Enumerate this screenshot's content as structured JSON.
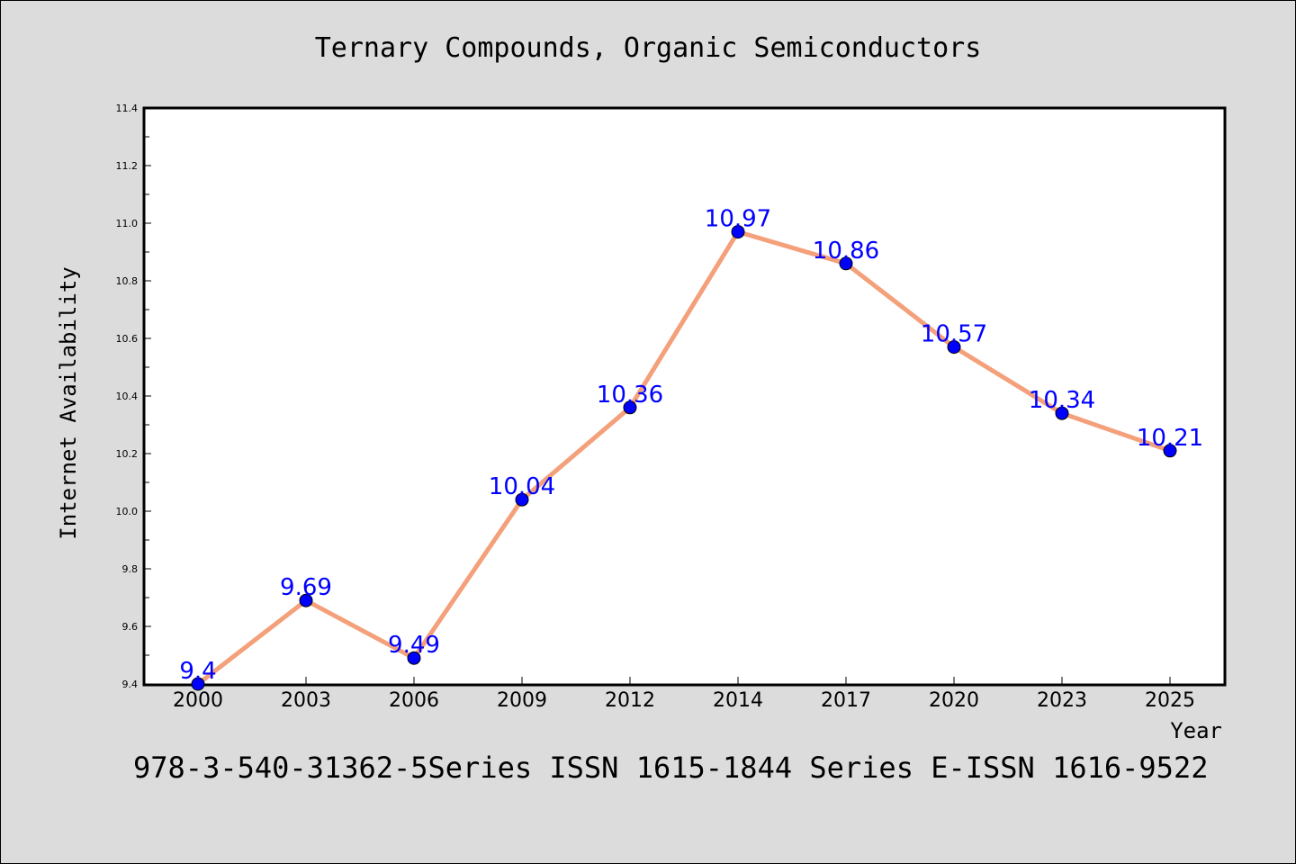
{
  "chart_data": {
    "type": "line",
    "title": "Ternary Compounds, Organic Semiconductors",
    "xlabel": "Year",
    "ylabel": "Internet Availability",
    "categories": [
      "2000",
      "2003",
      "2006",
      "2009",
      "2012",
      "2014",
      "2017",
      "2020",
      "2023",
      "2025"
    ],
    "series": [
      {
        "values": [
          9.4,
          9.69,
          9.49,
          10.04,
          10.36,
          10.97,
          10.86,
          10.57,
          10.34,
          10.21
        ]
      }
    ],
    "data_labels": [
      "9.4",
      "9.69",
      "9.49",
      "10.04",
      "10.36",
      "10.97",
      "10.86",
      "10.57",
      "10.34",
      "10.21"
    ],
    "ylim": [
      9.4,
      11.4
    ],
    "yticks": [
      "9.4",
      "9.6",
      "9.8",
      "10.0",
      "10.2",
      "10.4",
      "10.6",
      "10.8",
      "11.0",
      "11.2",
      "11.4"
    ],
    "grid": false,
    "colors": {
      "line": "#f4a07a",
      "marker": "#0000ff",
      "label": "#0000ff",
      "background": "#dcdcdc",
      "plot_area": "#ffffff"
    }
  },
  "footer": "978-3-540-31362-5Series ISSN 1615-1844 Series E-ISSN 1616-9522"
}
